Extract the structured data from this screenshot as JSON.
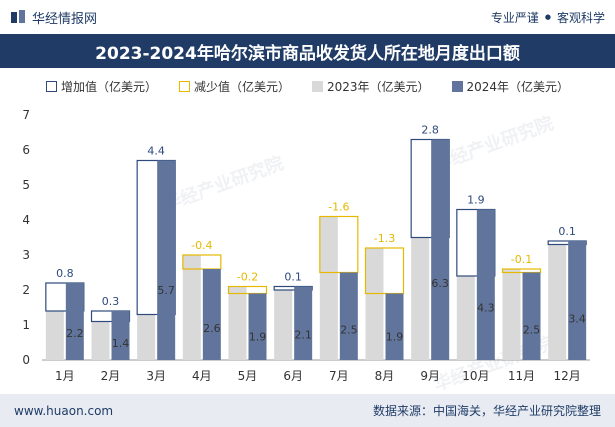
{
  "header": {
    "brand": "华经情报网",
    "tagline_left": "专业严谨",
    "tagline_dot": "●",
    "tagline_right": "客观科学"
  },
  "watermark": "华经产业研究院",
  "footer": {
    "website": "www.huaon.com",
    "source": "数据来源：中国海关，华经产业研究院整理"
  },
  "legend": {
    "increase": "增加值（亿美元）",
    "decrease": "减少值（亿美元）",
    "y2023": "2023年（亿美元）",
    "y2024": "2024年（亿美元）"
  },
  "colors": {
    "increase": "#2e4a7d",
    "decrease": "#e6b800",
    "bar2023": "#d9d9d9",
    "bar2024": "#61759c",
    "title_bg": "#1f3b66"
  },
  "chart_data": {
    "type": "bar",
    "title": "2023-2024年哈尔滨市商品收发货人所在地月度出口额",
    "categories": [
      "1月",
      "2月",
      "3月",
      "4月",
      "5月",
      "6月",
      "7月",
      "8月",
      "9月",
      "10月",
      "11月",
      "12月"
    ],
    "series": [
      {
        "name": "2023年（亿美元）",
        "values": [
          1.4,
          1.1,
          1.3,
          3.0,
          2.1,
          2.0,
          4.1,
          3.2,
          3.5,
          2.4,
          2.6,
          3.3
        ]
      },
      {
        "name": "2024年（亿美元）",
        "values": [
          2.2,
          1.4,
          5.7,
          2.6,
          1.9,
          2.1,
          2.5,
          1.9,
          6.3,
          4.3,
          2.5,
          3.4
        ]
      }
    ],
    "change_labels": [
      "0.8",
      "0.3",
      "4.4",
      "-0.4",
      "-0.2",
      "0.1",
      "-1.6",
      "-1.3",
      "2.8",
      "1.9",
      "-0.1",
      "0.1"
    ],
    "value_labels_2024": [
      "2.2",
      "1.4",
      "5.7",
      "2.6",
      "1.9",
      "2.1",
      "2.5",
      "1.9",
      "6.3",
      "4.3",
      "2.5",
      "3.4"
    ],
    "yticks": [
      "0",
      "1",
      "2",
      "3",
      "4",
      "5",
      "6",
      "7"
    ],
    "ylim": [
      0,
      7
    ],
    "xlabel": "",
    "ylabel": ""
  }
}
